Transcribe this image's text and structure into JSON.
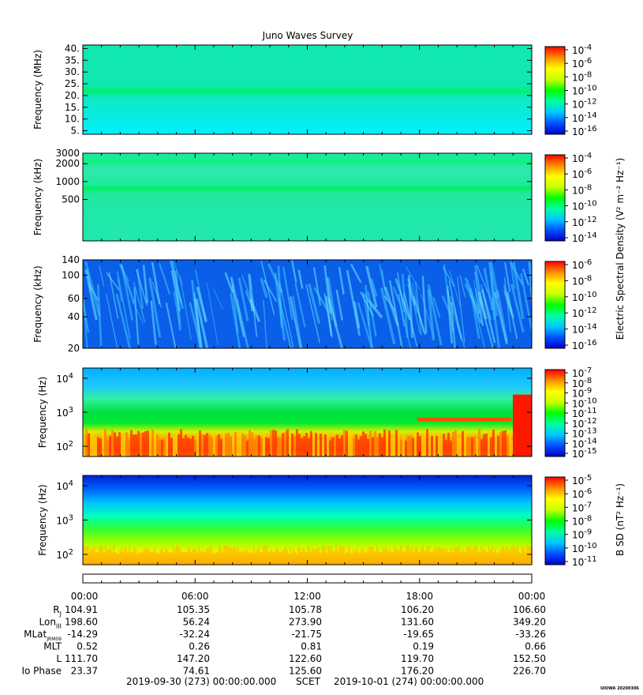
{
  "title": "Juno Waves Survey",
  "colors": {
    "colormap": [
      "#0000c8",
      "#0050ff",
      "#00c8ff",
      "#00ffa0",
      "#00ff00",
      "#c8ff00",
      "#ffff00",
      "#ff8c00",
      "#ff0000"
    ]
  },
  "chart_data": [
    {
      "type": "heatmap",
      "name": "panel-1",
      "ylabel": "Frequency (MHz)",
      "yscale": "linear",
      "ylim": [
        3.5,
        41.5
      ],
      "yticks": [
        {
          "v": 40,
          "label": "40."
        },
        {
          "v": 35,
          "label": "35."
        },
        {
          "v": 30,
          "label": "30."
        },
        {
          "v": 25,
          "label": "25."
        },
        {
          "v": 20,
          "label": "20."
        },
        {
          "v": 15,
          "label": "15."
        },
        {
          "v": 10,
          "label": "10."
        },
        {
          "v": 5,
          "label": "5."
        }
      ],
      "colorbar": {
        "ticks": [
          {
            "mant": "10",
            "exp": "-4"
          },
          {
            "mant": "10",
            "exp": "-6"
          },
          {
            "mant": "10",
            "exp": "-8"
          },
          {
            "mant": "10",
            "exp": "-10"
          },
          {
            "mant": "10",
            "exp": "-12"
          },
          {
            "mant": "10",
            "exp": "-14"
          },
          {
            "mant": "10",
            "exp": "-16"
          }
        ]
      },
      "features": "uniform background with a bright band near 21 MHz"
    },
    {
      "type": "heatmap",
      "name": "panel-2",
      "ylabel": "Frequency (kHz)",
      "yscale": "log",
      "ylim": [
        100,
        3000
      ],
      "yticks": [
        {
          "v": 3000,
          "label": "3000"
        },
        {
          "v": 2000,
          "label": "2000"
        },
        {
          "v": 1000,
          "label": "1000"
        },
        {
          "v": 500,
          "label": "500"
        }
      ],
      "colorbar": {
        "ticks": [
          {
            "mant": "10",
            "exp": "-4"
          },
          {
            "mant": "10",
            "exp": "-6"
          },
          {
            "mant": "10",
            "exp": "-8"
          },
          {
            "mant": "10",
            "exp": "-10"
          },
          {
            "mant": "10",
            "exp": "-12"
          },
          {
            "mant": "10",
            "exp": "-14"
          }
        ]
      },
      "features": "bright band near 1000 kHz, fainter band near 2700 kHz"
    },
    {
      "type": "heatmap",
      "name": "panel-3",
      "ylabel": "Frequency (kHz)",
      "yscale": "log",
      "ylim": [
        20,
        140
      ],
      "yticks": [
        {
          "v": 140,
          "label": "140"
        },
        {
          "v": 100,
          "label": "100"
        },
        {
          "v": 60,
          "label": "60"
        },
        {
          "v": 40,
          "label": "40"
        },
        {
          "v": 20,
          "label": "20"
        }
      ],
      "colorbar": {
        "label": "Electric Spectral Density (V² m⁻² Hz⁻¹)",
        "ticks": [
          {
            "mant": "10",
            "exp": "-6"
          },
          {
            "mant": "10",
            "exp": "-8"
          },
          {
            "mant": "10",
            "exp": "-10"
          },
          {
            "mant": "10",
            "exp": "-12"
          },
          {
            "mant": "10",
            "exp": "-14"
          },
          {
            "mant": "10",
            "exp": "-16"
          }
        ]
      },
      "features": "blue background with diagonal cyan emission streaks"
    },
    {
      "type": "heatmap",
      "name": "panel-4",
      "ylabel": "Frequency (Hz)",
      "yscale": "log",
      "ylim": [
        50,
        20000
      ],
      "yticks": [
        {
          "v": 10000,
          "mant": "10",
          "exp": "4"
        },
        {
          "v": 1000,
          "mant": "10",
          "exp": "3"
        },
        {
          "v": 100,
          "mant": "10",
          "exp": "2"
        }
      ],
      "colorbar": {
        "ticks": [
          {
            "mant": "10",
            "exp": "-7"
          },
          {
            "mant": "10",
            "exp": "-8"
          },
          {
            "mant": "10",
            "exp": "-9"
          },
          {
            "mant": "10",
            "exp": "-10"
          },
          {
            "mant": "10",
            "exp": "-11"
          },
          {
            "mant": "10",
            "exp": "-12"
          },
          {
            "mant": "10",
            "exp": "-13"
          },
          {
            "mant": "10",
            "exp": "-14"
          },
          {
            "mant": "10",
            "exp": "-15"
          }
        ]
      },
      "features": "red/orange emission below 300 Hz, horizontal line near 600 Hz after 18:00, intense red at end of day"
    },
    {
      "type": "heatmap",
      "name": "panel-5",
      "ylabel": "Frequency (Hz)",
      "yscale": "log",
      "ylim": [
        50,
        20000
      ],
      "yticks": [
        {
          "v": 10000,
          "mant": "10",
          "exp": "4"
        },
        {
          "v": 1000,
          "mant": "10",
          "exp": "3"
        },
        {
          "v": 100,
          "mant": "10",
          "exp": "2"
        }
      ],
      "colorbar": {
        "label": "B SD (nT² Hz⁻¹)",
        "ticks": [
          {
            "mant": "10",
            "exp": "-5"
          },
          {
            "mant": "10",
            "exp": "-6"
          },
          {
            "mant": "10",
            "exp": "-7"
          },
          {
            "mant": "10",
            "exp": "-8"
          },
          {
            "mant": "10",
            "exp": "-9"
          },
          {
            "mant": "10",
            "exp": "-10"
          },
          {
            "mant": "10",
            "exp": "-11"
          }
        ]
      },
      "features": "blue at high frequency grading through green to yellow/orange below 200 Hz"
    }
  ],
  "time_axis": {
    "labels": [
      "00:00",
      "06:00",
      "12:00",
      "18:00",
      "00:00"
    ]
  },
  "ephemeris": {
    "rows": [
      {
        "label": "R",
        "sub": "J",
        "values": [
          "104.91",
          "105.35",
          "105.78",
          "106.20",
          "106.60"
        ]
      },
      {
        "label": "Lon",
        "sub": "III",
        "values": [
          "198.60",
          "56.24",
          "273.90",
          "131.60",
          "349.20"
        ]
      },
      {
        "label": "MLat",
        "sub": "JRM09",
        "values": [
          "-14.29",
          "-32.24",
          "-21.75",
          "-19.65",
          "-33.26"
        ]
      },
      {
        "label": "MLT",
        "sub": "",
        "values": [
          "0.52",
          "0.26",
          "0.81",
          "0.19",
          "0.66"
        ]
      },
      {
        "label": "L",
        "sub": "",
        "values": [
          "111.70",
          "147.20",
          "122.60",
          "119.70",
          "152.50"
        ]
      },
      {
        "label": "Io Phase",
        "sub": "",
        "values": [
          "23.37",
          "74.61",
          "125.60",
          "176.20",
          "226.70"
        ]
      }
    ]
  },
  "footer": {
    "start": "2019-09-30 (273) 00:00:00.000",
    "scet": "SCET",
    "end": "2019-10-01 (274) 00:00:00.000"
  },
  "stamp": "UIOWA 20200306"
}
